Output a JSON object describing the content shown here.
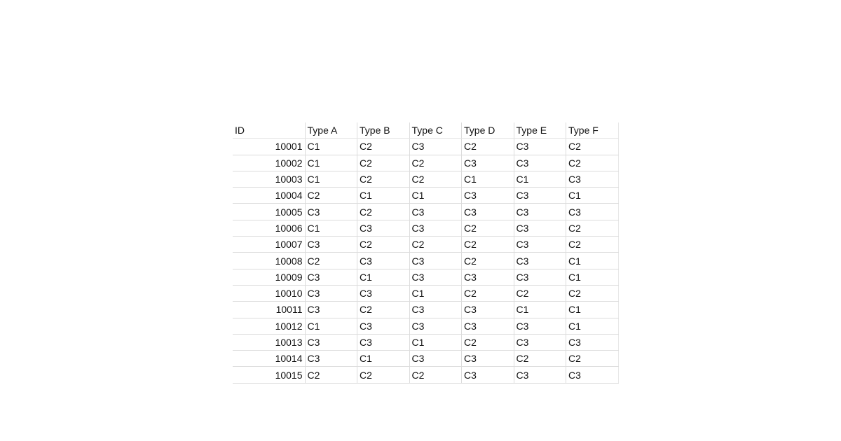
{
  "table": {
    "headers": [
      "ID",
      "Type A",
      "Type B",
      "Type C",
      "Type D",
      "Type E",
      "Type F"
    ],
    "rows": [
      [
        "10001",
        "C1",
        "C2",
        "C3",
        "C2",
        "C3",
        "C2"
      ],
      [
        "10002",
        "C1",
        "C2",
        "C2",
        "C3",
        "C3",
        "C2"
      ],
      [
        "10003",
        "C1",
        "C2",
        "C2",
        "C1",
        "C1",
        "C3"
      ],
      [
        "10004",
        "C2",
        "C1",
        "C1",
        "C3",
        "C3",
        "C1"
      ],
      [
        "10005",
        "C3",
        "C2",
        "C3",
        "C3",
        "C3",
        "C3"
      ],
      [
        "10006",
        "C1",
        "C3",
        "C3",
        "C2",
        "C3",
        "C2"
      ],
      [
        "10007",
        "C3",
        "C2",
        "C2",
        "C2",
        "C3",
        "C2"
      ],
      [
        "10008",
        "C2",
        "C3",
        "C3",
        "C2",
        "C3",
        "C1"
      ],
      [
        "10009",
        "C3",
        "C1",
        "C3",
        "C3",
        "C3",
        "C1"
      ],
      [
        "10010",
        "C3",
        "C3",
        "C1",
        "C2",
        "C2",
        "C2"
      ],
      [
        "10011",
        "C3",
        "C2",
        "C3",
        "C3",
        "C1",
        "C1"
      ],
      [
        "10012",
        "C1",
        "C3",
        "C3",
        "C3",
        "C3",
        "C1"
      ],
      [
        "10013",
        "C3",
        "C3",
        "C1",
        "C2",
        "C3",
        "C3"
      ],
      [
        "10014",
        "C3",
        "C1",
        "C3",
        "C3",
        "C2",
        "C2"
      ],
      [
        "10015",
        "C2",
        "C2",
        "C2",
        "C3",
        "C3",
        "C3"
      ]
    ]
  }
}
